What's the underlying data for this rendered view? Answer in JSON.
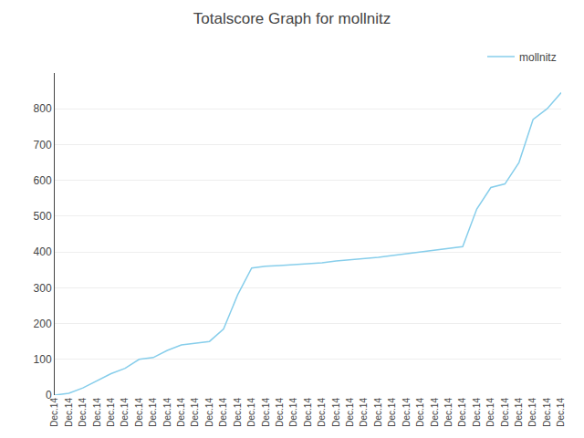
{
  "chart_data": {
    "type": "line",
    "title": "Totalscore Graph for mollnitz",
    "categories": [
      "Dec.14",
      "Dec.14",
      "Dec.14",
      "Dec.14",
      "Dec.14",
      "Dec.14",
      "Dec.14",
      "Dec.14",
      "Dec.14",
      "Dec.14",
      "Dec.14",
      "Dec.14",
      "Dec.14",
      "Dec.14",
      "Dec.14",
      "Dec.14",
      "Dec.14",
      "Dec.14",
      "Dec.14",
      "Dec.14",
      "Dec.14",
      "Dec.14",
      "Dec.14",
      "Dec.14",
      "Dec.14",
      "Dec.14",
      "Dec.14",
      "Dec.14",
      "Dec.14",
      "Dec.14",
      "Dec.14",
      "Dec.14",
      "Dec.14",
      "Dec.14",
      "Dec.14",
      "Dec.14",
      "Dec.14"
    ],
    "series": [
      {
        "name": "mollnitz",
        "color": "#87CEEB",
        "values": [
          0,
          5,
          20,
          40,
          60,
          75,
          100,
          105,
          125,
          140,
          145,
          150,
          185,
          280,
          355,
          360,
          362,
          365,
          368,
          370,
          375,
          378,
          382,
          385,
          390,
          395,
          400,
          405,
          410,
          415,
          520,
          580,
          590,
          650,
          770,
          800,
          845
        ]
      }
    ],
    "ylim": [
      0,
      900
    ],
    "yticks": [
      0,
      100,
      200,
      300,
      400,
      500,
      600,
      700,
      800
    ],
    "grid": true,
    "legend": "upper right"
  }
}
